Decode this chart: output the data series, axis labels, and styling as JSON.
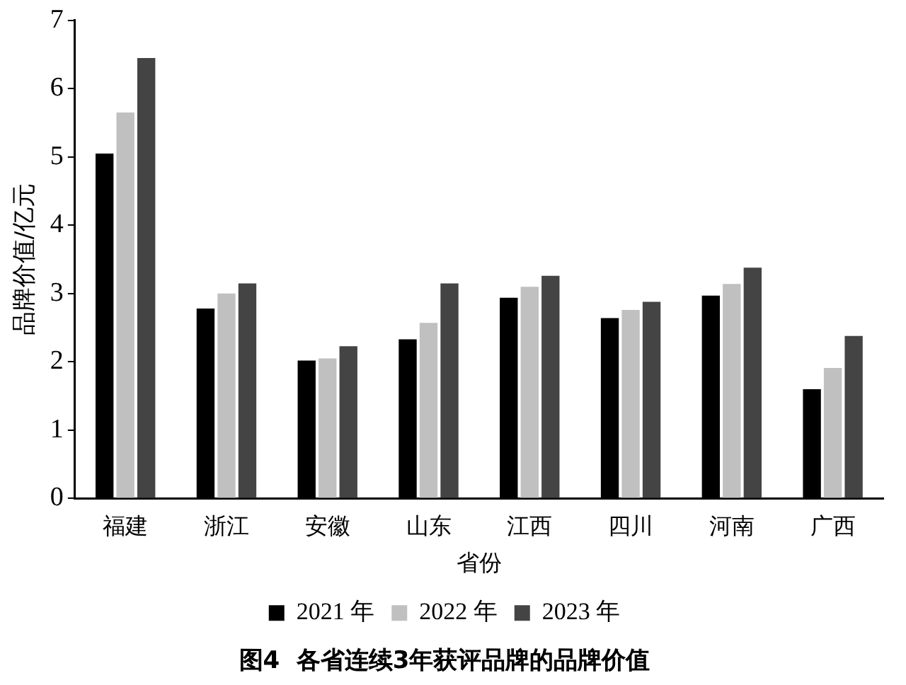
{
  "chart_data": {
    "type": "bar",
    "title": "图4  各省连续3年获评品牌的品牌价值",
    "xlabel": "省份",
    "ylabel": "品牌价值/亿元",
    "categories": [
      "福建",
      "浙江",
      "安徽",
      "山东",
      "江西",
      "四川",
      "河南",
      "广西"
    ],
    "series": [
      {
        "name": "2021 年",
        "color": "#000000",
        "values": [
          5.05,
          2.78,
          2.02,
          2.33,
          2.94,
          2.64,
          2.97,
          1.6
        ]
      },
      {
        "name": "2022 年",
        "color": "#c0c0c0",
        "values": [
          5.65,
          3.0,
          2.05,
          2.57,
          3.1,
          2.76,
          3.14,
          1.91
        ]
      },
      {
        "name": "2023 年",
        "color": "#444444",
        "values": [
          6.45,
          3.15,
          2.23,
          3.15,
          3.26,
          2.88,
          3.38,
          2.38
        ]
      }
    ],
    "ylim": [
      0,
      7
    ],
    "yticks": [
      0,
      1,
      2,
      3,
      4,
      5,
      6,
      7
    ],
    "legend": "bottom"
  }
}
